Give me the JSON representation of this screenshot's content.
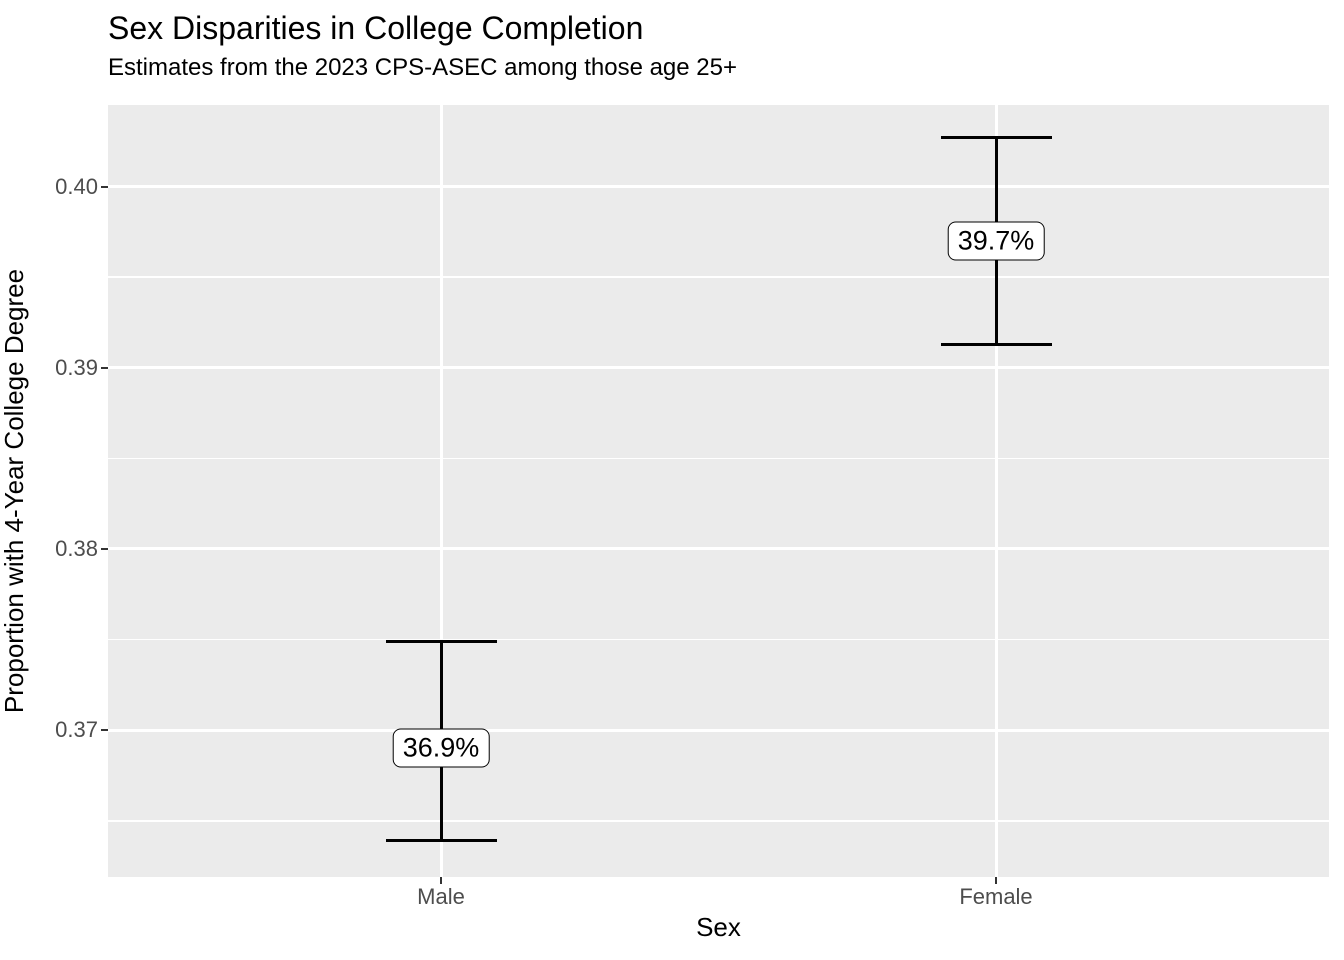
{
  "chart_data": {
    "type": "errorbar",
    "title": "Sex Disparities in College Completion",
    "subtitle": "Estimates from the 2023 CPS-ASEC among those age 25+",
    "xlabel": "Sex",
    "ylabel": "Proportion with 4-Year College Degree",
    "categories": [
      "Male",
      "Female"
    ],
    "series": [
      {
        "category": "Male",
        "estimate": 0.369,
        "lower": 0.3639,
        "upper": 0.3749,
        "label": "36.9%"
      },
      {
        "category": "Female",
        "estimate": 0.397,
        "lower": 0.3913,
        "upper": 0.4027,
        "label": "39.7%"
      }
    ],
    "ylim": [
      0.3619,
      0.4045
    ],
    "y_major_ticks": [
      0.37,
      0.38,
      0.39,
      0.4
    ],
    "y_tick_labels": [
      "0.37",
      "0.38",
      "0.39",
      "0.40"
    ],
    "y_minor_ticks": [
      0.365,
      0.375,
      0.385,
      0.395
    ],
    "grid": true,
    "legend": "none",
    "colors": {
      "page_background": "#FFFFFF",
      "panel_background": "#EBEBEB",
      "gridline": "#FFFFFF",
      "axis_text": "#4D4D4D",
      "tick_mark": "#333333",
      "text": "#000000",
      "errorbar": "#000000",
      "label_fill": "#FFFFFF",
      "label_border": "#000000"
    }
  }
}
